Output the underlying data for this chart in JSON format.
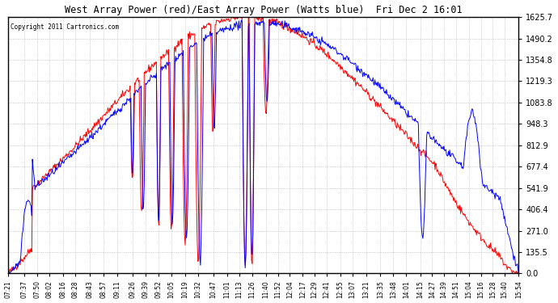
{
  "title": "West Array Power (red)/East Array Power (Watts blue)  Fri Dec 2 16:01",
  "copyright": "Copyright 2011 Cartronics.com",
  "background_color": "#ffffff",
  "plot_bg_color": "#ffffff",
  "grid_color": "#aaaaaa",
  "red_color": "#ff0000",
  "blue_color": "#0000ff",
  "text_color": "#000000",
  "yticks": [
    0.0,
    135.5,
    271.0,
    406.4,
    541.9,
    677.4,
    812.9,
    948.3,
    1083.8,
    1219.3,
    1354.8,
    1490.2,
    1625.7
  ],
  "ylim": [
    0.0,
    1625.7
  ],
  "xtick_labels": [
    "07:21",
    "07:37",
    "07:50",
    "08:02",
    "08:16",
    "08:28",
    "08:43",
    "08:57",
    "09:11",
    "09:26",
    "09:39",
    "09:52",
    "10:05",
    "10:19",
    "10:32",
    "10:47",
    "11:01",
    "11:13",
    "11:26",
    "11:40",
    "11:52",
    "12:04",
    "12:17",
    "12:29",
    "12:41",
    "12:55",
    "13:07",
    "13:21",
    "13:35",
    "13:48",
    "14:01",
    "14:15",
    "14:27",
    "14:39",
    "14:51",
    "15:04",
    "15:16",
    "15:28",
    "15:40",
    "15:54"
  ]
}
